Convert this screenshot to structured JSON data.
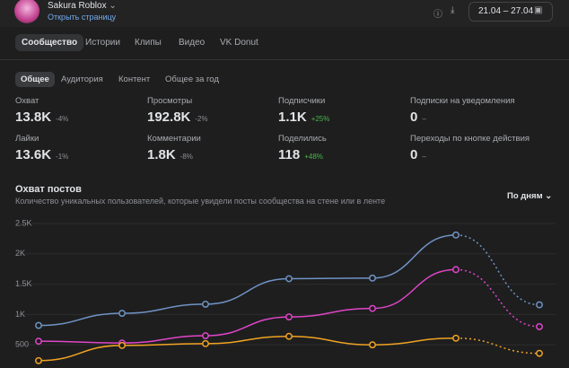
{
  "header": {
    "name": "Sakura Roblox",
    "link": "Открыть страницу",
    "date_range": "21.04 – 27.04"
  },
  "tabs": [
    "Сообщество",
    "Истории",
    "Клипы",
    "Видео",
    "VK Donut"
  ],
  "active_tab": 0,
  "subtabs": [
    "Общее",
    "Аудитория",
    "Контент",
    "Общее за год"
  ],
  "active_subtab": 0,
  "stats": [
    {
      "label": "Охват",
      "value": "13.8K",
      "delta": "-4%"
    },
    {
      "label": "Просмотры",
      "value": "192.8K",
      "delta": "-2%"
    },
    {
      "label": "Подписчики",
      "value": "1.1K",
      "delta": "+25%"
    },
    {
      "label": "Подписки на уведомления",
      "value": "0",
      "delta": "–"
    },
    {
      "label": "Лайки",
      "value": "13.6K",
      "delta": "-1%"
    },
    {
      "label": "Комментарии",
      "value": "1.8K",
      "delta": "-8%"
    },
    {
      "label": "Поделились",
      "value": "118",
      "delta": "+48%"
    },
    {
      "label": "Переходы по кнопке действия",
      "value": "0",
      "delta": "–"
    }
  ],
  "chart_data": {
    "type": "line",
    "title": "Охват постов",
    "subtitle": "Количество уникальных пользователей, которые увидели посты сообщества на стене или в ленте",
    "period": "По дням",
    "ylim": [
      0,
      2500
    ],
    "yticks": [
      500,
      {
        "value": 1000,
        "label": "1K"
      },
      {
        "value": 1500,
        "label": "1.5K"
      },
      {
        "value": 2000,
        "label": "2K"
      },
      {
        "value": 2500,
        "label": "2.5K"
      }
    ],
    "grid": true,
    "series": [
      {
        "color": "#6f93c4",
        "values": [
          820,
          1020,
          1170,
          1590,
          1600,
          2310,
          1160
        ]
      },
      {
        "color": "#e045c8",
        "values": [
          560,
          530,
          650,
          960,
          1100,
          1740,
          800
        ]
      },
      {
        "color": "#f0a322",
        "values": [
          240,
          490,
          520,
          640,
          500,
          610,
          360
        ]
      }
    ]
  }
}
